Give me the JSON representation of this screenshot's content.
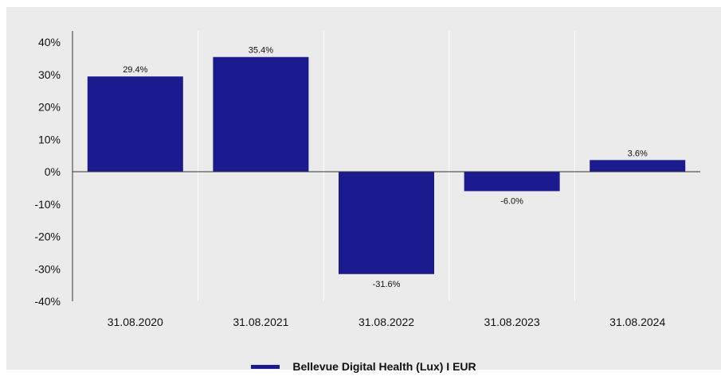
{
  "chart_data": {
    "type": "bar",
    "categories": [
      "31.08.2020",
      "31.08.2021",
      "31.08.2022",
      "31.08.2023",
      "31.08.2024"
    ],
    "series": [
      {
        "name": "Bellevue Digital Health (Lux) I EUR",
        "values": [
          29.4,
          35.4,
          -31.6,
          -6.0,
          3.6
        ],
        "labels": [
          "29.4%",
          "35.4%",
          "-31.6%",
          "-6.0%",
          "3.6%"
        ],
        "color": "#1b1b8f"
      }
    ],
    "y_ticks": [
      "40%",
      "30%",
      "20%",
      "10%",
      "0%",
      "-10%",
      "-20%",
      "-30%",
      "-40%"
    ],
    "ylim": [
      -40,
      40
    ],
    "grid": "vertical separators between categories",
    "legend_position": "bottom-center"
  }
}
